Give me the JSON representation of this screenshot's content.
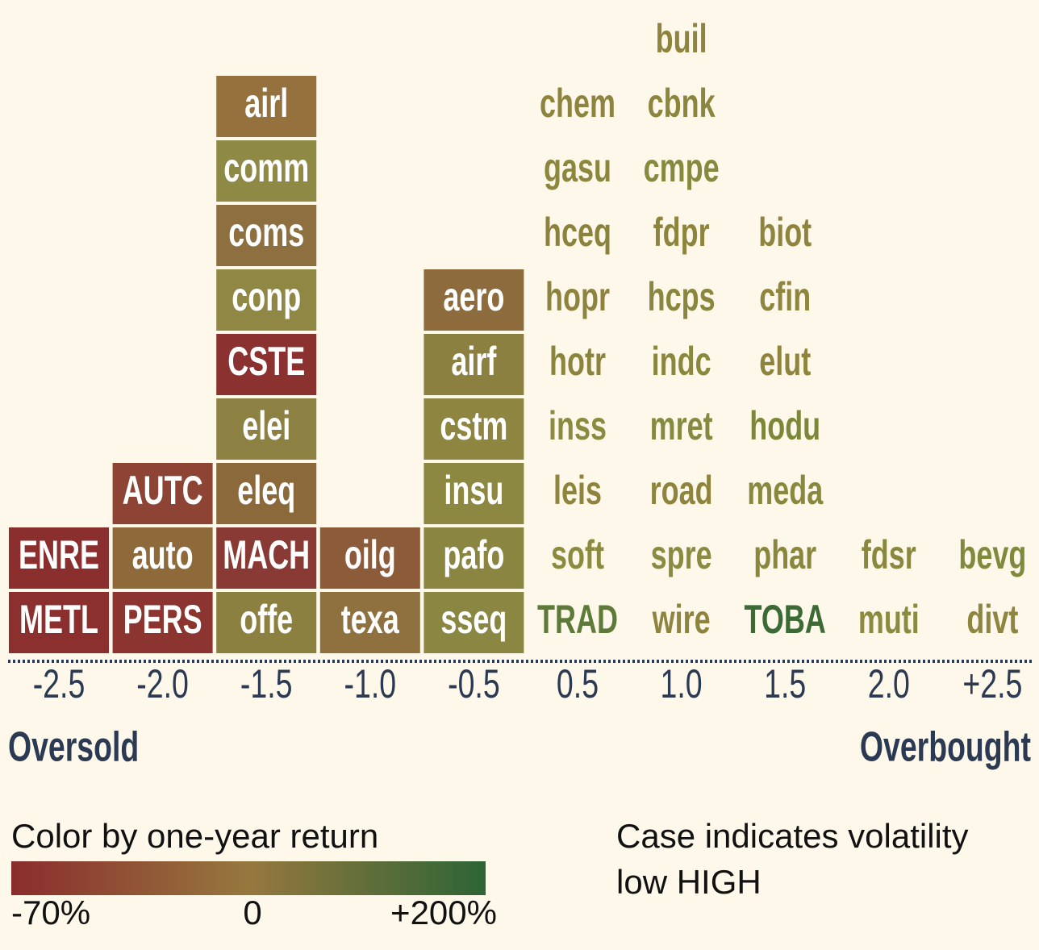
{
  "chart_data": {
    "type": "tiles",
    "left_label": "Oversold",
    "right_label": "Overbought",
    "legend_title": "Color by one-year return",
    "legend_ticks": [
      "-70%",
      "0",
      "+200%"
    ],
    "legend_colors": [
      "#8b2c2c",
      "#96783e",
      "#2d6436"
    ],
    "case_note": "Case indicates volatility",
    "case_example": "low HIGH",
    "columns": [
      {
        "label": "-2.5",
        "boxed": true,
        "items": [
          {
            "name": "METL",
            "color": "#8b2f2f"
          },
          {
            "name": "ENRE",
            "color": "#8a2e2e"
          }
        ]
      },
      {
        "label": "-2.0",
        "boxed": true,
        "items": [
          {
            "name": "PERS",
            "color": "#8b3430"
          },
          {
            "name": "auto",
            "color": "#8e6a3b"
          },
          {
            "name": "AUTC",
            "color": "#8e4434"
          }
        ]
      },
      {
        "label": "-1.5",
        "boxed": true,
        "items": [
          {
            "name": "offe",
            "color": "#8c8040"
          },
          {
            "name": "MACH",
            "color": "#8a3a34"
          },
          {
            "name": "eleq",
            "color": "#8c693a"
          },
          {
            "name": "elei",
            "color": "#8c8042"
          },
          {
            "name": "CSTE",
            "color": "#8b3230"
          },
          {
            "name": "conp",
            "color": "#8f8743"
          },
          {
            "name": "coms",
            "color": "#8e6f3f"
          },
          {
            "name": "comm",
            "color": "#8e8945"
          },
          {
            "name": "airl",
            "color": "#94713d"
          }
        ]
      },
      {
        "label": "-1.0",
        "boxed": true,
        "items": [
          {
            "name": "texa",
            "color": "#8f7140"
          },
          {
            "name": "oilg",
            "color": "#8b5b3a"
          }
        ]
      },
      {
        "label": "-0.5",
        "boxed": true,
        "items": [
          {
            "name": "sseq",
            "color": "#8a8742"
          },
          {
            "name": "pafo",
            "color": "#8b8542"
          },
          {
            "name": "insu",
            "color": "#8c8841"
          },
          {
            "name": "cstm",
            "color": "#8d8540"
          },
          {
            "name": "airf",
            "color": "#8c8040"
          },
          {
            "name": "aero",
            "color": "#8e6b3c"
          }
        ]
      },
      {
        "label": "0.5",
        "boxed": false,
        "items": [
          {
            "name": "TRAD",
            "color": "#5e7a38"
          },
          {
            "name": "soft",
            "color": "#8c8a3f"
          },
          {
            "name": "leis",
            "color": "#8e843e"
          },
          {
            "name": "inss",
            "color": "#8a8a40"
          },
          {
            "name": "hotr",
            "color": "#8a843e"
          },
          {
            "name": "hopr",
            "color": "#8e833e"
          },
          {
            "name": "hceq",
            "color": "#8b823e"
          },
          {
            "name": "gasu",
            "color": "#8c863f"
          },
          {
            "name": "chem",
            "color": "#8e843f"
          }
        ]
      },
      {
        "label": "1.0",
        "boxed": false,
        "items": [
          {
            "name": "wire",
            "color": "#8e843f"
          },
          {
            "name": "spre",
            "color": "#8a8a40"
          },
          {
            "name": "road",
            "color": "#8e843e"
          },
          {
            "name": "mret",
            "color": "#848a3f"
          },
          {
            "name": "indc",
            "color": "#8a883f"
          },
          {
            "name": "hcps",
            "color": "#8a863e"
          },
          {
            "name": "fdpr",
            "color": "#8d843e"
          },
          {
            "name": "cmpe",
            "color": "#868a3f"
          },
          {
            "name": "cbnk",
            "color": "#8c853e"
          },
          {
            "name": "buil",
            "color": "#8e843e"
          }
        ]
      },
      {
        "label": "1.5",
        "boxed": false,
        "items": [
          {
            "name": "TOBA",
            "color": "#3b6a35"
          },
          {
            "name": "phar",
            "color": "#8a863e"
          },
          {
            "name": "meda",
            "color": "#8a883f"
          },
          {
            "name": "hodu",
            "color": "#7c873a"
          },
          {
            "name": "elut",
            "color": "#8e843e"
          },
          {
            "name": "cfin",
            "color": "#8e853e"
          },
          {
            "name": "biot",
            "color": "#8e843e"
          }
        ]
      },
      {
        "label": "2.0",
        "boxed": false,
        "items": [
          {
            "name": "muti",
            "color": "#8a8a40"
          },
          {
            "name": "fdsr",
            "color": "#8a873e"
          }
        ]
      },
      {
        "label": "+2.5",
        "boxed": false,
        "items": [
          {
            "name": "divt",
            "color": "#8e853e"
          },
          {
            "name": "bevg",
            "color": "#808a3c"
          }
        ]
      }
    ]
  }
}
